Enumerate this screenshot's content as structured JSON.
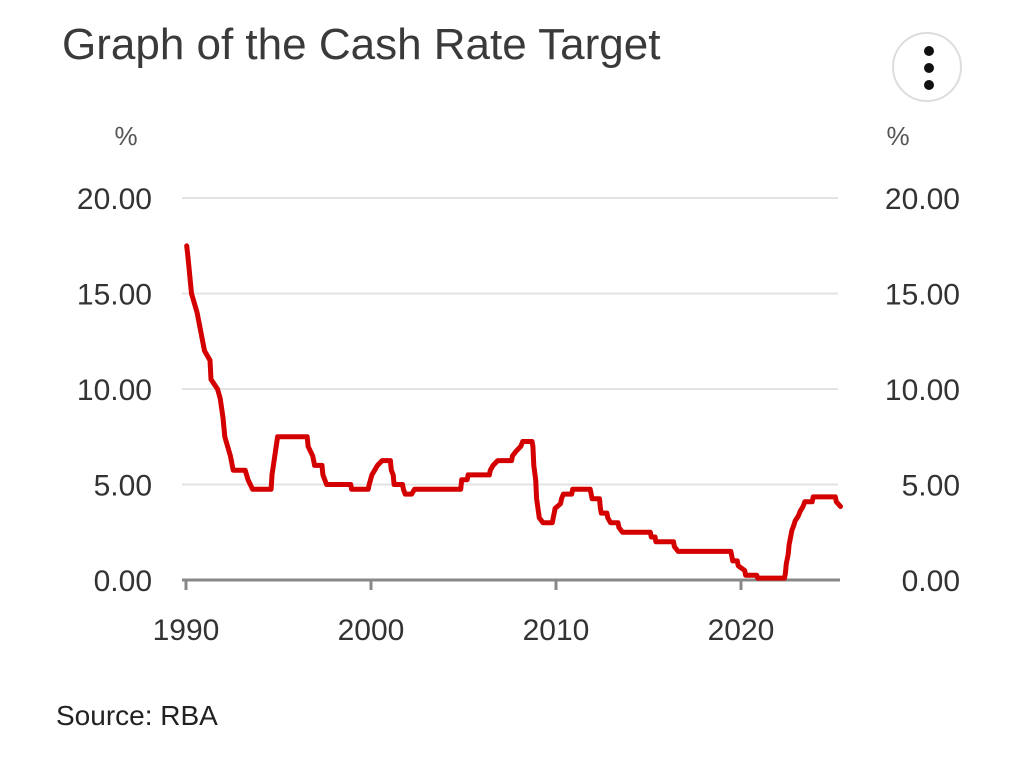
{
  "chart_data": {
    "type": "line",
    "title": "Graph of the Cash Rate Target",
    "y_unit_left": "%",
    "y_unit_right": "%",
    "ylim": [
      0,
      20
    ],
    "yticks": [
      "0.00",
      "5.00",
      "10.00",
      "15.00",
      "20.00"
    ],
    "xlim": [
      1990,
      2025.6
    ],
    "xticks": [
      "1990",
      "2000",
      "2010",
      "2020"
    ],
    "grid": true,
    "line_color": "#d40000",
    "series": [
      {
        "points": [
          [
            1990.04,
            17.5
          ],
          [
            1990.1,
            17.0
          ],
          [
            1990.3,
            15.0
          ],
          [
            1990.6,
            14.0
          ],
          [
            1990.8,
            13.0
          ],
          [
            1991.0,
            12.0
          ],
          [
            1991.3,
            11.5
          ],
          [
            1991.35,
            10.5
          ],
          [
            1991.7,
            10.0
          ],
          [
            1991.85,
            9.5
          ],
          [
            1992.0,
            8.5
          ],
          [
            1992.1,
            7.5
          ],
          [
            1992.4,
            6.5
          ],
          [
            1992.55,
            5.75
          ],
          [
            1993.2,
            5.75
          ],
          [
            1993.35,
            5.25
          ],
          [
            1993.6,
            4.75
          ],
          [
            1994.6,
            4.75
          ],
          [
            1994.65,
            5.5
          ],
          [
            1994.8,
            6.5
          ],
          [
            1994.95,
            7.5
          ],
          [
            1996.55,
            7.5
          ],
          [
            1996.6,
            7.0
          ],
          [
            1996.85,
            6.5
          ],
          [
            1996.95,
            6.0
          ],
          [
            1997.35,
            6.0
          ],
          [
            1997.4,
            5.5
          ],
          [
            1997.6,
            5.0
          ],
          [
            1998.9,
            5.0
          ],
          [
            1998.95,
            4.75
          ],
          [
            1999.85,
            4.75
          ],
          [
            1999.9,
            5.0
          ],
          [
            2000.05,
            5.5
          ],
          [
            2000.2,
            5.75
          ],
          [
            2000.35,
            6.0
          ],
          [
            2000.6,
            6.25
          ],
          [
            2001.05,
            6.25
          ],
          [
            2001.1,
            5.75
          ],
          [
            2001.2,
            5.5
          ],
          [
            2001.25,
            5.0
          ],
          [
            2001.7,
            5.0
          ],
          [
            2001.75,
            4.75
          ],
          [
            2001.85,
            4.5
          ],
          [
            2002.2,
            4.5
          ],
          [
            2002.35,
            4.75
          ],
          [
            2004.85,
            4.75
          ],
          [
            2004.9,
            5.25
          ],
          [
            2005.2,
            5.25
          ],
          [
            2005.25,
            5.5
          ],
          [
            2006.4,
            5.5
          ],
          [
            2006.45,
            5.75
          ],
          [
            2006.6,
            6.0
          ],
          [
            2006.85,
            6.25
          ],
          [
            2007.6,
            6.25
          ],
          [
            2007.65,
            6.5
          ],
          [
            2007.85,
            6.75
          ],
          [
            2008.1,
            7.0
          ],
          [
            2008.2,
            7.25
          ],
          [
            2008.7,
            7.25
          ],
          [
            2008.75,
            7.0
          ],
          [
            2008.8,
            6.0
          ],
          [
            2008.9,
            5.25
          ],
          [
            2008.95,
            4.25
          ],
          [
            2009.1,
            3.25
          ],
          [
            2009.3,
            3.0
          ],
          [
            2009.8,
            3.0
          ],
          [
            2009.85,
            3.25
          ],
          [
            2009.9,
            3.5
          ],
          [
            2009.95,
            3.75
          ],
          [
            2010.25,
            4.0
          ],
          [
            2010.3,
            4.25
          ],
          [
            2010.4,
            4.5
          ],
          [
            2010.85,
            4.5
          ],
          [
            2010.9,
            4.75
          ],
          [
            2011.85,
            4.75
          ],
          [
            2011.9,
            4.5
          ],
          [
            2011.95,
            4.25
          ],
          [
            2012.35,
            4.25
          ],
          [
            2012.4,
            3.75
          ],
          [
            2012.45,
            3.5
          ],
          [
            2012.75,
            3.5
          ],
          [
            2012.8,
            3.25
          ],
          [
            2012.95,
            3.0
          ],
          [
            2013.35,
            3.0
          ],
          [
            2013.4,
            2.75
          ],
          [
            2013.6,
            2.5
          ],
          [
            2015.1,
            2.5
          ],
          [
            2015.15,
            2.25
          ],
          [
            2015.35,
            2.25
          ],
          [
            2015.4,
            2.0
          ],
          [
            2016.35,
            2.0
          ],
          [
            2016.4,
            1.75
          ],
          [
            2016.6,
            1.5
          ],
          [
            2019.45,
            1.5
          ],
          [
            2019.5,
            1.25
          ],
          [
            2019.55,
            1.0
          ],
          [
            2019.8,
            1.0
          ],
          [
            2019.85,
            0.75
          ],
          [
            2020.2,
            0.5
          ],
          [
            2020.25,
            0.25
          ],
          [
            2020.85,
            0.25
          ],
          [
            2020.9,
            0.1
          ],
          [
            2022.35,
            0.1
          ],
          [
            2022.4,
            0.35
          ],
          [
            2022.45,
            0.85
          ],
          [
            2022.55,
            1.35
          ],
          [
            2022.6,
            1.85
          ],
          [
            2022.7,
            2.35
          ],
          [
            2022.75,
            2.6
          ],
          [
            2022.85,
            2.85
          ],
          [
            2022.93,
            3.1
          ],
          [
            2023.1,
            3.35
          ],
          [
            2023.2,
            3.6
          ],
          [
            2023.35,
            3.85
          ],
          [
            2023.45,
            4.1
          ],
          [
            2023.85,
            4.1
          ],
          [
            2023.9,
            4.35
          ],
          [
            2025.1,
            4.35
          ],
          [
            2025.15,
            4.1
          ],
          [
            2025.38,
            3.85
          ]
        ]
      }
    ],
    "source": "Source: RBA"
  },
  "menu": {
    "icon": "kebab-menu-icon"
  }
}
